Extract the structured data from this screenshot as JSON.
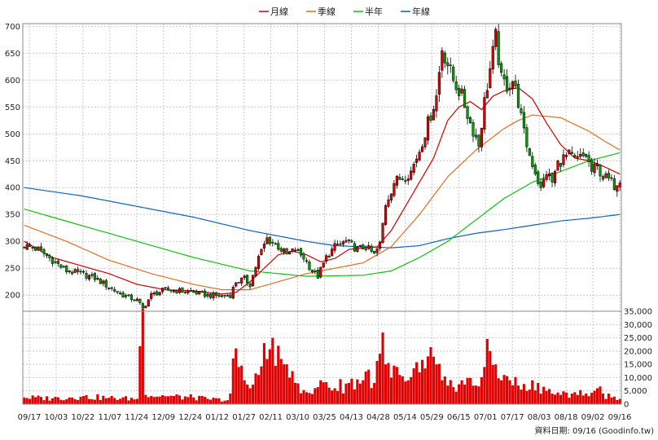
{
  "chart_data": [
    {
      "type": "candlestick",
      "legend": [
        {
          "name": "月線",
          "color": "#d00000"
        },
        {
          "name": "季線",
          "color": "#e07020"
        },
        {
          "name": "半年",
          "color": "#10c010"
        },
        {
          "name": "年線",
          "color": "#1060c0"
        }
      ],
      "ylim": [
        170,
        705
      ],
      "yticks": [
        200,
        250,
        300,
        350,
        400,
        450,
        500,
        550,
        600,
        650,
        700
      ],
      "colors": {
        "up": "#e00000",
        "down": "#00a000",
        "grid": "#c8c8c8"
      },
      "price_anchors": [
        [
          0,
          292
        ],
        [
          5,
          285
        ],
        [
          10,
          265
        ],
        [
          15,
          245
        ],
        [
          20,
          240
        ],
        [
          25,
          232
        ],
        [
          30,
          215
        ],
        [
          35,
          200
        ],
        [
          40,
          190
        ],
        [
          42,
          175
        ],
        [
          45,
          200
        ],
        [
          50,
          210
        ],
        [
          55,
          208
        ],
        [
          60,
          205
        ],
        [
          65,
          200
        ],
        [
          70,
          198
        ],
        [
          73,
          200
        ],
        [
          75,
          225
        ],
        [
          78,
          230
        ],
        [
          80,
          220
        ],
        [
          83,
          270
        ],
        [
          86,
          305
        ],
        [
          90,
          290
        ],
        [
          93,
          275
        ],
        [
          96,
          285
        ],
        [
          99,
          270
        ],
        [
          102,
          245
        ],
        [
          104,
          235
        ],
        [
          107,
          270
        ],
        [
          110,
          290
        ],
        [
          114,
          300
        ],
        [
          118,
          285
        ],
        [
          121,
          290
        ],
        [
          124,
          275
        ],
        [
          126,
          295
        ],
        [
          128,
          370
        ],
        [
          131,
          410
        ],
        [
          134,
          420
        ],
        [
          137,
          430
        ],
        [
          140,
          470
        ],
        [
          143,
          520
        ],
        [
          146,
          570
        ],
        [
          148,
          660
        ],
        [
          150,
          630
        ],
        [
          152,
          600
        ],
        [
          155,
          570
        ],
        [
          158,
          520
        ],
        [
          161,
          480
        ],
        [
          163,
          560
        ],
        [
          165,
          620
        ],
        [
          167,
          680
        ],
        [
          169,
          600
        ],
        [
          171,
          590
        ],
        [
          173,
          600
        ],
        [
          175,
          560
        ],
        [
          177,
          500
        ],
        [
          179,
          460
        ],
        [
          181,
          430
        ],
        [
          183,
          395
        ],
        [
          185,
          430
        ],
        [
          187,
          410
        ],
        [
          189,
          445
        ],
        [
          191,
          455
        ],
        [
          193,
          460
        ],
        [
          195,
          450
        ],
        [
          197,
          455
        ],
        [
          199,
          460
        ],
        [
          201,
          430
        ],
        [
          203,
          440
        ],
        [
          205,
          420
        ],
        [
          207,
          415
        ],
        [
          209,
          405
        ],
        [
          211,
          418
        ]
      ],
      "month_line": [
        [
          0,
          300
        ],
        [
          10,
          270
        ],
        [
          20,
          255
        ],
        [
          30,
          240
        ],
        [
          40,
          220
        ],
        [
          50,
          210
        ],
        [
          60,
          208
        ],
        [
          70,
          202
        ],
        [
          75,
          205
        ],
        [
          80,
          225
        ],
        [
          85,
          250
        ],
        [
          90,
          275
        ],
        [
          95,
          282
        ],
        [
          100,
          275
        ],
        [
          105,
          262
        ],
        [
          110,
          268
        ],
        [
          115,
          285
        ],
        [
          120,
          288
        ],
        [
          125,
          290
        ],
        [
          130,
          320
        ],
        [
          135,
          365
        ],
        [
          140,
          410
        ],
        [
          145,
          455
        ],
        [
          150,
          525
        ],
        [
          154,
          550
        ],
        [
          158,
          560
        ],
        [
          162,
          545
        ],
        [
          166,
          570
        ],
        [
          170,
          580
        ],
        [
          175,
          586
        ],
        [
          180,
          565
        ],
        [
          185,
          520
        ],
        [
          190,
          480
        ],
        [
          195,
          455
        ],
        [
          200,
          450
        ],
        [
          205,
          440
        ],
        [
          211,
          425
        ]
      ],
      "season_line": [
        [
          0,
          330
        ],
        [
          15,
          300
        ],
        [
          30,
          265
        ],
        [
          45,
          240
        ],
        [
          60,
          220
        ],
        [
          70,
          210
        ],
        [
          80,
          210
        ],
        [
          90,
          225
        ],
        [
          100,
          240
        ],
        [
          110,
          250
        ],
        [
          120,
          260
        ],
        [
          130,
          290
        ],
        [
          140,
          350
        ],
        [
          150,
          420
        ],
        [
          160,
          470
        ],
        [
          170,
          510
        ],
        [
          175,
          525
        ],
        [
          180,
          535
        ],
        [
          190,
          530
        ],
        [
          200,
          505
        ],
        [
          206,
          485
        ],
        [
          211,
          470
        ]
      ],
      "halfyear_line": [
        [
          0,
          360
        ],
        [
          20,
          330
        ],
        [
          40,
          300
        ],
        [
          60,
          270
        ],
        [
          80,
          245
        ],
        [
          100,
          235
        ],
        [
          120,
          237
        ],
        [
          130,
          245
        ],
        [
          140,
          270
        ],
        [
          150,
          300
        ],
        [
          160,
          340
        ],
        [
          170,
          380
        ],
        [
          180,
          410
        ],
        [
          190,
          430
        ],
        [
          200,
          450
        ],
        [
          211,
          465
        ]
      ],
      "year_line": [
        [
          0,
          400
        ],
        [
          20,
          385
        ],
        [
          40,
          365
        ],
        [
          60,
          345
        ],
        [
          80,
          320
        ],
        [
          100,
          300
        ],
        [
          110,
          292
        ],
        [
          120,
          290
        ],
        [
          130,
          288
        ],
        [
          140,
          292
        ],
        [
          150,
          305
        ],
        [
          160,
          315
        ],
        [
          170,
          322
        ],
        [
          180,
          330
        ],
        [
          190,
          338
        ],
        [
          200,
          343
        ],
        [
          211,
          350
        ]
      ]
    },
    {
      "type": "bar",
      "ylim": [
        0,
        35000
      ],
      "yticks": [
        "0",
        "5,000",
        "10,000",
        "15,000",
        "20,000",
        "25,000",
        "30,000",
        "35,000"
      ],
      "ytick_values": [
        0,
        5000,
        10000,
        15000,
        20000,
        25000,
        30000,
        35000
      ],
      "color": "#e00000",
      "volume_anchors": [
        [
          0,
          2500
        ],
        [
          10,
          2200
        ],
        [
          20,
          2800
        ],
        [
          30,
          2400
        ],
        [
          40,
          2000
        ],
        [
          42,
          36000
        ],
        [
          43,
          3500
        ],
        [
          50,
          3000
        ],
        [
          60,
          2500
        ],
        [
          65,
          2000
        ],
        [
          72,
          1500
        ],
        [
          73,
          4000
        ],
        [
          75,
          21000
        ],
        [
          76,
          14000
        ],
        [
          78,
          9000
        ],
        [
          80,
          6000
        ],
        [
          83,
          11000
        ],
        [
          85,
          23000
        ],
        [
          86,
          17000
        ],
        [
          88,
          25000
        ],
        [
          90,
          22000
        ],
        [
          92,
          15000
        ],
        [
          94,
          10000
        ],
        [
          96,
          8000
        ],
        [
          100,
          4500
        ],
        [
          103,
          6000
        ],
        [
          105,
          9000
        ],
        [
          110,
          6000
        ],
        [
          115,
          8000
        ],
        [
          120,
          9000
        ],
        [
          122,
          13000
        ],
        [
          124,
          8000
        ],
        [
          126,
          19000
        ],
        [
          127,
          27000
        ],
        [
          128,
          15000
        ],
        [
          130,
          10000
        ],
        [
          133,
          11000
        ],
        [
          136,
          9000
        ],
        [
          140,
          12000
        ],
        [
          143,
          18000
        ],
        [
          146,
          15000
        ],
        [
          148,
          9000
        ],
        [
          150,
          7000
        ],
        [
          155,
          9000
        ],
        [
          160,
          7000
        ],
        [
          163,
          14000
        ],
        [
          165,
          20000
        ],
        [
          167,
          15000
        ],
        [
          170,
          11000
        ],
        [
          172,
          9000
        ],
        [
          175,
          7000
        ],
        [
          178,
          5000
        ],
        [
          180,
          9000
        ],
        [
          182,
          8000
        ],
        [
          185,
          5000
        ],
        [
          190,
          3500
        ],
        [
          195,
          4500
        ],
        [
          200,
          3000
        ],
        [
          203,
          6000
        ],
        [
          205,
          4000
        ],
        [
          208,
          2500
        ],
        [
          211,
          2000
        ]
      ]
    }
  ],
  "x_labels": [
    "09/17",
    "10/03",
    "10/22",
    "11/07",
    "11/24",
    "12/09",
    "12/24",
    "01/12",
    "01/27",
    "02/11",
    "03/10",
    "03/25",
    "04/13",
    "04/28",
    "05/14",
    "05/29",
    "06/15",
    "07/01",
    "07/17",
    "08/03",
    "08/18",
    "09/02",
    "09/16"
  ],
  "source": "資料日期: 09/16  (Goodinfo.tw)"
}
